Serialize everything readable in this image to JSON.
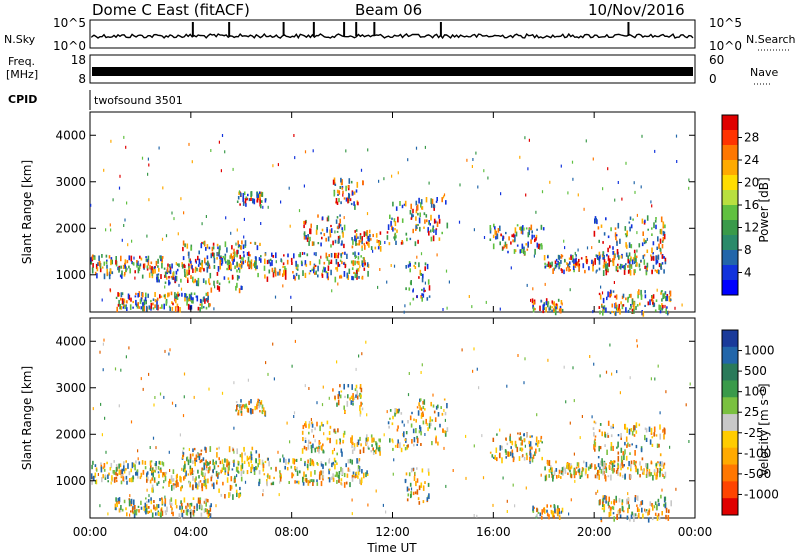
{
  "header": {
    "title": "Dome C East (fitACF)",
    "beam": "Beam 06",
    "date": "10/Nov/2016"
  },
  "sky_panel": {
    "left_label": "N.Sky",
    "right_label": "N.Search",
    "ticks_left": [
      "10^5",
      "10^0"
    ],
    "ticks_right": [
      "10^5",
      "10^0"
    ]
  },
  "freq_panel": {
    "left_label_1": "Freq.",
    "left_label_2": "[MHz]",
    "right_label": "Nave",
    "ticks_left": [
      "18",
      "8"
    ],
    "ticks_right": [
      "60",
      "0"
    ]
  },
  "cpid_panel": {
    "left_label": "CPID",
    "program": "twofsound 3501"
  },
  "x_axis": {
    "label": "Time UT",
    "ticks": [
      "00:00",
      "04:00",
      "08:00",
      "12:00",
      "16:00",
      "20:00",
      "00:00"
    ]
  },
  "chart_data": [
    {
      "type": "heatmap",
      "quantity": "Power",
      "ylabel": "Slant Range [km]",
      "colorbar_label": "Power [dB]",
      "xlabel": "Time UT",
      "xlim": [
        "00:00",
        "24:00"
      ],
      "ylim": [
        200,
        4500
      ],
      "y_ticks": [
        1000,
        2000,
        3000,
        4000
      ],
      "colorbar_ticks": [
        "28",
        "24",
        "20",
        "16",
        "12",
        "8",
        "4"
      ],
      "colorbar_colors": [
        "#e00000",
        "#ff3300",
        "#ff7700",
        "#ffaa00",
        "#ffdd00",
        "#b8e040",
        "#60c040",
        "#3a9a4a",
        "#2a8a6a",
        "#2266aa",
        "#1133dd",
        "#0000ff"
      ]
    },
    {
      "type": "heatmap",
      "quantity": "Velocity",
      "ylabel": "Slant Range [km]",
      "colorbar_label": "Velocity [m s⁻¹]",
      "xlabel": "Time UT",
      "xlim": [
        "00:00",
        "24:00"
      ],
      "ylim": [
        200,
        4500
      ],
      "y_ticks": [
        1000,
        2000,
        3000,
        4000
      ],
      "colorbar_ticks": [
        "1000",
        "500",
        "100",
        "25",
        "-25",
        "-100",
        "-500",
        "-1000"
      ],
      "colorbar_colors": [
        "#1a3a9a",
        "#2266aa",
        "#2a7a5a",
        "#3a9a4a",
        "#7ac040",
        "#c8c8c8",
        "#ffcc00",
        "#ffaa00",
        "#ff7700",
        "#ff4400",
        "#e00000"
      ]
    }
  ]
}
